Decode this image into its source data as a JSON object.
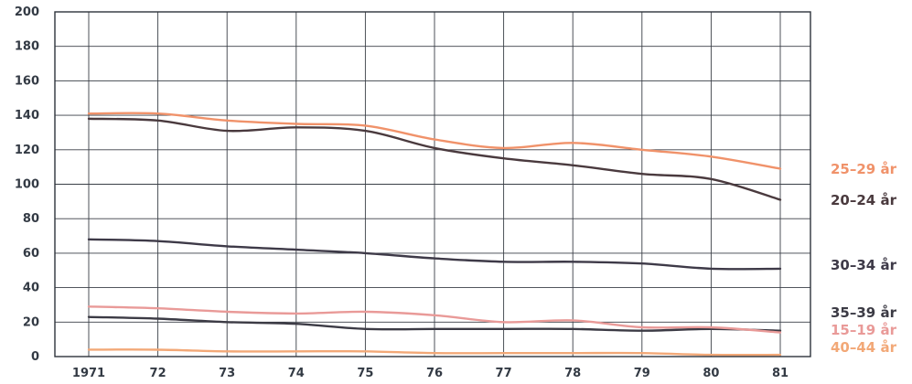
{
  "chart_data": {
    "type": "line",
    "title": "",
    "xlabel": "",
    "ylabel": "",
    "categories": [
      "1971",
      "72",
      "73",
      "74",
      "75",
      "76",
      "77",
      "78",
      "79",
      "80",
      "81"
    ],
    "ylim": [
      0,
      200
    ],
    "yticks": [
      "0",
      "20",
      "40",
      "60",
      "80",
      "100",
      "120",
      "140",
      "160",
      "180",
      "200"
    ],
    "grid": true,
    "legend": "right, labels at line ends",
    "series": [
      {
        "name": "25–29 år",
        "color": "#f0926a",
        "values": [
          141,
          141,
          137,
          135,
          134,
          126,
          121,
          124,
          120,
          116,
          109
        ]
      },
      {
        "name": "20–24 år",
        "color": "#4a3a3e",
        "values": [
          138,
          137,
          131,
          133,
          131,
          121,
          115,
          111,
          106,
          103,
          91
        ]
      },
      {
        "name": "30–34 år",
        "color": "#3e3a48",
        "values": [
          68,
          67,
          64,
          62,
          60,
          57,
          55,
          55,
          54,
          51,
          51
        ]
      },
      {
        "name": "35–39 år",
        "color": "#3c3b45",
        "values": [
          23,
          22,
          20,
          19,
          16,
          16,
          16,
          16,
          15,
          16,
          15
        ]
      },
      {
        "name": "15–19 år",
        "color": "#e99a98",
        "values": [
          29,
          28,
          26,
          25,
          26,
          24,
          20,
          21,
          17,
          17,
          14
        ]
      },
      {
        "name": "40–44 år",
        "color": "#f2a877",
        "values": [
          4,
          4,
          3,
          3,
          3,
          2,
          2,
          2,
          2,
          1,
          1
        ]
      }
    ]
  }
}
